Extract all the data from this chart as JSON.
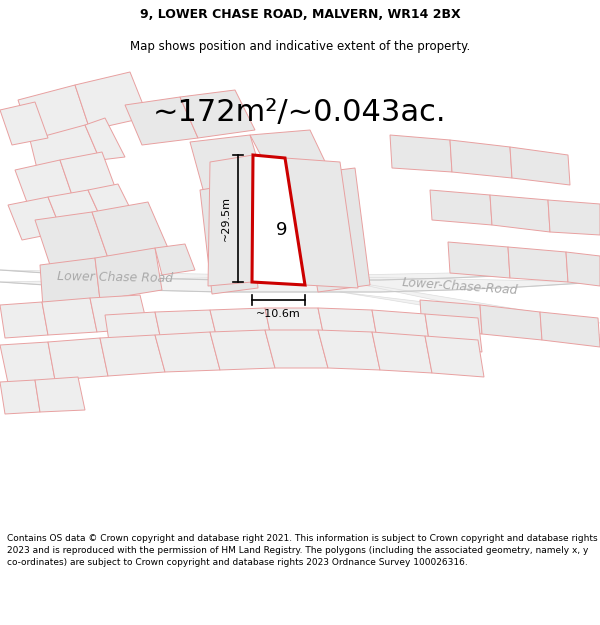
{
  "title_line1": "9, LOWER CHASE ROAD, MALVERN, WR14 2BX",
  "title_line2": "Map shows position and indicative extent of the property.",
  "area_text": "~172m²/~0.043ac.",
  "label_height": "~29.5m",
  "label_width": "~10.6m",
  "property_number": "9",
  "road_label_left": "Lower Chase Road",
  "road_label_right": "Lower-Chase-Road",
  "footer_text": "Contains OS data © Crown copyright and database right 2021. This information is subject to Crown copyright and database rights 2023 and is reproduced with the permission of HM Land Registry. The polygons (including the associated geometry, namely x, y co-ordinates) are subject to Crown copyright and database rights 2023 Ordnance Survey 100026316.",
  "bg_color": "#ffffff",
  "plot_fill": "#eeeeee",
  "plot_edge": "#e8a0a0",
  "prop_fill": "#ffffff",
  "prop_edge": "#cc0000",
  "road_fill": "#f0f0f0",
  "road_edge": "#cccccc",
  "title_fontsize": 9,
  "subtitle_fontsize": 8.5,
  "area_fontsize": 22,
  "footer_fontsize": 6.5,
  "road_label_color": "#aaaaaa",
  "road_label_size": 9
}
